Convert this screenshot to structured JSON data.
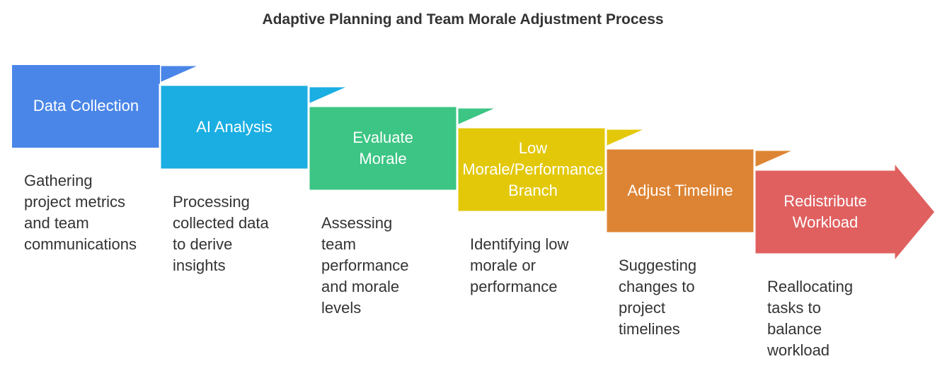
{
  "title": "Adaptive Planning and Team Morale Adjustment Process",
  "colors": {
    "step1": "#4a86e8",
    "step2": "#1aaee2",
    "step3": "#3cc584",
    "step4": "#e3c80a",
    "step5": "#dd8434",
    "step6": "#e06060",
    "outline": "#ffffff"
  },
  "steps": [
    {
      "label": "Data Collection",
      "description": "Gathering\nproject metrics\nand team\ncommunications"
    },
    {
      "label": "AI Analysis",
      "description": "Processing\ncollected data\nto derive\ninsights"
    },
    {
      "label": "Evaluate\nMorale",
      "description": "Assessing\nteam\nperformance\nand morale\nlevels"
    },
    {
      "label": "Low\nMorale/Performance\nBranch",
      "description": "Identifying low\nmorale or\nperformance"
    },
    {
      "label": "Adjust Timeline",
      "description": "Suggesting\nchanges to\nproject\ntimelines"
    },
    {
      "label": "Redistribute\nWorkload",
      "description": "Reallocating\ntasks to\nbalance\nworkload"
    }
  ]
}
